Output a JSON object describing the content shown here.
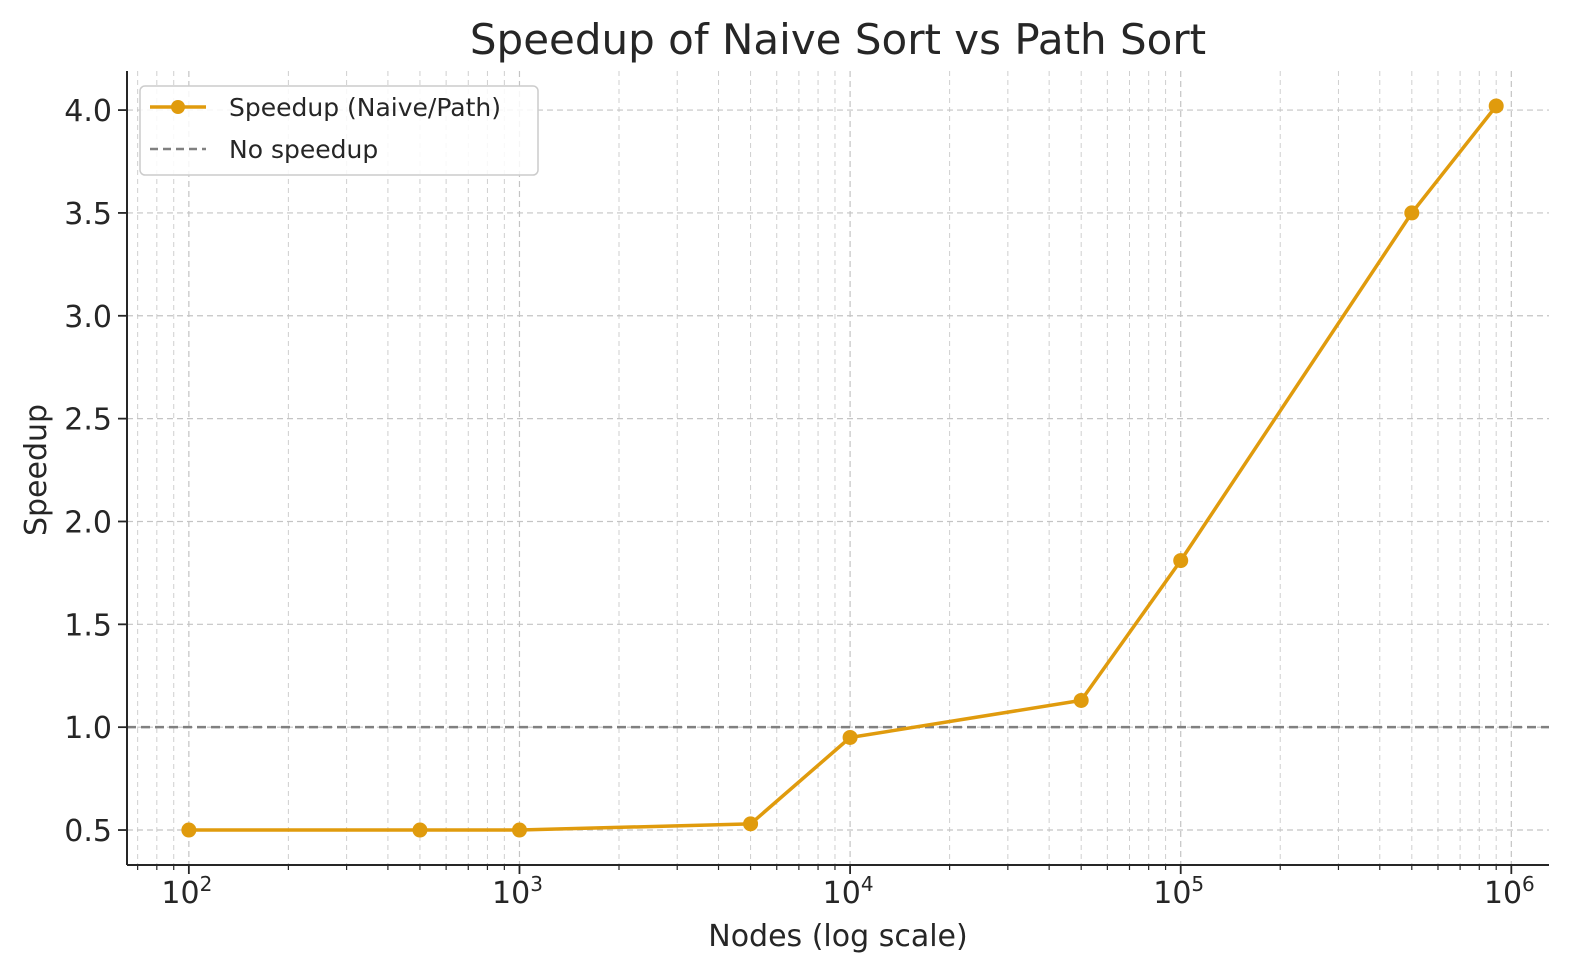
{
  "chart_data": {
    "type": "line",
    "title": "Speedup of Naive Sort vs Path Sort",
    "xlabel": "Nodes (log scale)",
    "ylabel": "Speedup",
    "x_scale": "log",
    "xlim": [
      65,
      1300000
    ],
    "ylim": [
      0.33,
      4.19
    ],
    "x_ticks": [
      {
        "value": 100,
        "base": "10",
        "exp": "2"
      },
      {
        "value": 1000,
        "base": "10",
        "exp": "3"
      },
      {
        "value": 10000,
        "base": "10",
        "exp": "4"
      },
      {
        "value": 100000,
        "base": "10",
        "exp": "5"
      },
      {
        "value": 1000000,
        "base": "10",
        "exp": "6"
      }
    ],
    "y_ticks": [
      {
        "value": 0.5,
        "label": "0.5"
      },
      {
        "value": 1.0,
        "label": "1.0"
      },
      {
        "value": 1.5,
        "label": "1.5"
      },
      {
        "value": 2.0,
        "label": "2.0"
      },
      {
        "value": 2.5,
        "label": "2.5"
      },
      {
        "value": 3.0,
        "label": "3.0"
      },
      {
        "value": 3.5,
        "label": "3.5"
      },
      {
        "value": 4.0,
        "label": "4.0"
      }
    ],
    "grid": true,
    "legend_position": "top-left",
    "series": [
      {
        "name": "Speedup (Naive/Path)",
        "color": "#E09B0D",
        "marker": "circle",
        "x": [
          100,
          500,
          1000,
          5000,
          10000,
          50000,
          100000,
          500000,
          900000
        ],
        "y": [
          0.5,
          0.5,
          0.5,
          0.53,
          0.95,
          1.13,
          1.81,
          3.5,
          4.02
        ]
      }
    ],
    "reference_lines": [
      {
        "name": "No speedup",
        "y": 1.0,
        "style": "dashed",
        "color": "#808080"
      }
    ]
  }
}
